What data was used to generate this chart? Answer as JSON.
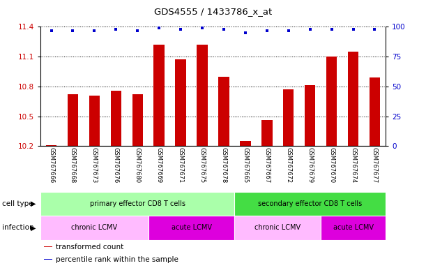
{
  "title": "GDS4555 / 1433786_x_at",
  "samples": [
    "GSM767666",
    "GSM767668",
    "GSM767673",
    "GSM767676",
    "GSM767680",
    "GSM767669",
    "GSM767671",
    "GSM767675",
    "GSM767678",
    "GSM767665",
    "GSM767667",
    "GSM767672",
    "GSM767679",
    "GSM767670",
    "GSM767674",
    "GSM767677"
  ],
  "bar_values": [
    10.21,
    10.72,
    10.71,
    10.76,
    10.72,
    11.22,
    11.07,
    11.22,
    10.9,
    10.25,
    10.46,
    10.77,
    10.81,
    11.1,
    11.15,
    10.89
  ],
  "percentile_values": [
    97,
    97,
    97,
    98,
    97,
    99,
    98,
    99,
    98,
    95,
    97,
    97,
    98,
    98,
    98,
    98
  ],
  "bar_color": "#cc0000",
  "dot_color": "#0000cc",
  "ylim_left": [
    10.2,
    11.4
  ],
  "ylim_right": [
    0,
    100
  ],
  "yticks_left": [
    10.2,
    10.5,
    10.8,
    11.1,
    11.4
  ],
  "yticks_right": [
    0,
    25,
    50,
    75,
    100
  ],
  "cell_type_labels": [
    {
      "text": "primary effector CD8 T cells",
      "start": 0,
      "end": 9,
      "color": "#aaffaa"
    },
    {
      "text": "secondary effector CD8 T cells",
      "start": 9,
      "end": 16,
      "color": "#44dd44"
    }
  ],
  "infection_labels": [
    {
      "text": "chronic LCMV",
      "start": 0,
      "end": 5,
      "color": "#ffbbff"
    },
    {
      "text": "acute LCMV",
      "start": 5,
      "end": 9,
      "color": "#dd00dd"
    },
    {
      "text": "chronic LCMV",
      "start": 9,
      "end": 13,
      "color": "#ffbbff"
    },
    {
      "text": "acute LCMV",
      "start": 13,
      "end": 16,
      "color": "#dd00dd"
    }
  ],
  "cell_type_row_label": "cell type",
  "infection_row_label": "infection",
  "legend_items": [
    {
      "color": "#cc0000",
      "label": "transformed count"
    },
    {
      "color": "#0000cc",
      "label": "percentile rank within the sample"
    }
  ],
  "tick_label_color_left": "#cc0000",
  "tick_label_color_right": "#0000cc",
  "xtick_bg_color": "#cccccc",
  "plot_bg_color": "#ffffff",
  "grid_color": "#000000",
  "bar_width": 0.5
}
